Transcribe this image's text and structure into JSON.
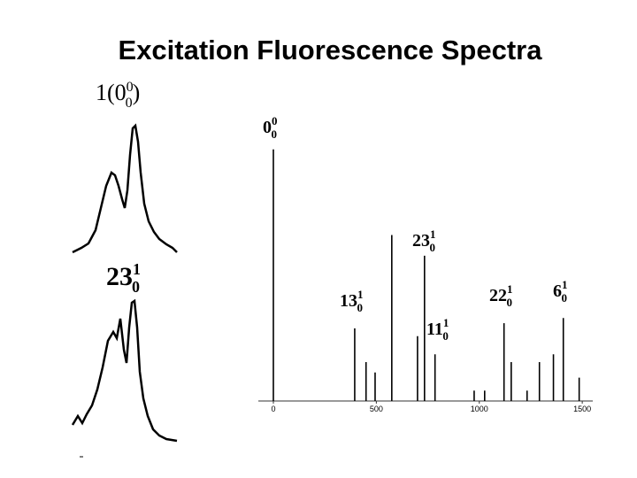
{
  "title": "Excitation Fluorescence Spectra",
  "profiles": [
    {
      "prefix": "1(",
      "base": "0",
      "sup": "0",
      "sub": "0",
      "suffix": ")"
    },
    {
      "base": "23",
      "sup": "1",
      "sub": "0"
    }
  ],
  "chart_data": {
    "type": "stem",
    "x": [
      0,
      395,
      450,
      494,
      575,
      700,
      734,
      785,
      975,
      1026,
      1120,
      1155,
      1232,
      1292,
      1360,
      1408,
      1485
    ],
    "series": [
      {
        "color": "#000000",
        "values": [
          97,
          28,
          15,
          11,
          64,
          25,
          56,
          18,
          4,
          4,
          30,
          15,
          4,
          15,
          18,
          32,
          9
        ]
      }
    ],
    "xlim": [
      -73,
      1551
    ],
    "ylim": [
      0,
      100
    ],
    "xticks": [
      0,
      500,
      1000,
      1500
    ],
    "annotations": [
      {
        "base": "0",
        "sup": "0",
        "sub": "0"
      },
      {
        "base": "23",
        "sup": "1",
        "sub": "0"
      },
      {
        "base": "13",
        "sup": "1",
        "sub": "0"
      },
      {
        "base": "11",
        "sup": "1",
        "sub": "0"
      },
      {
        "base": "22",
        "sup": "1",
        "sub": "0"
      },
      {
        "base": "6",
        "sup": "1",
        "sub": "0"
      }
    ]
  }
}
